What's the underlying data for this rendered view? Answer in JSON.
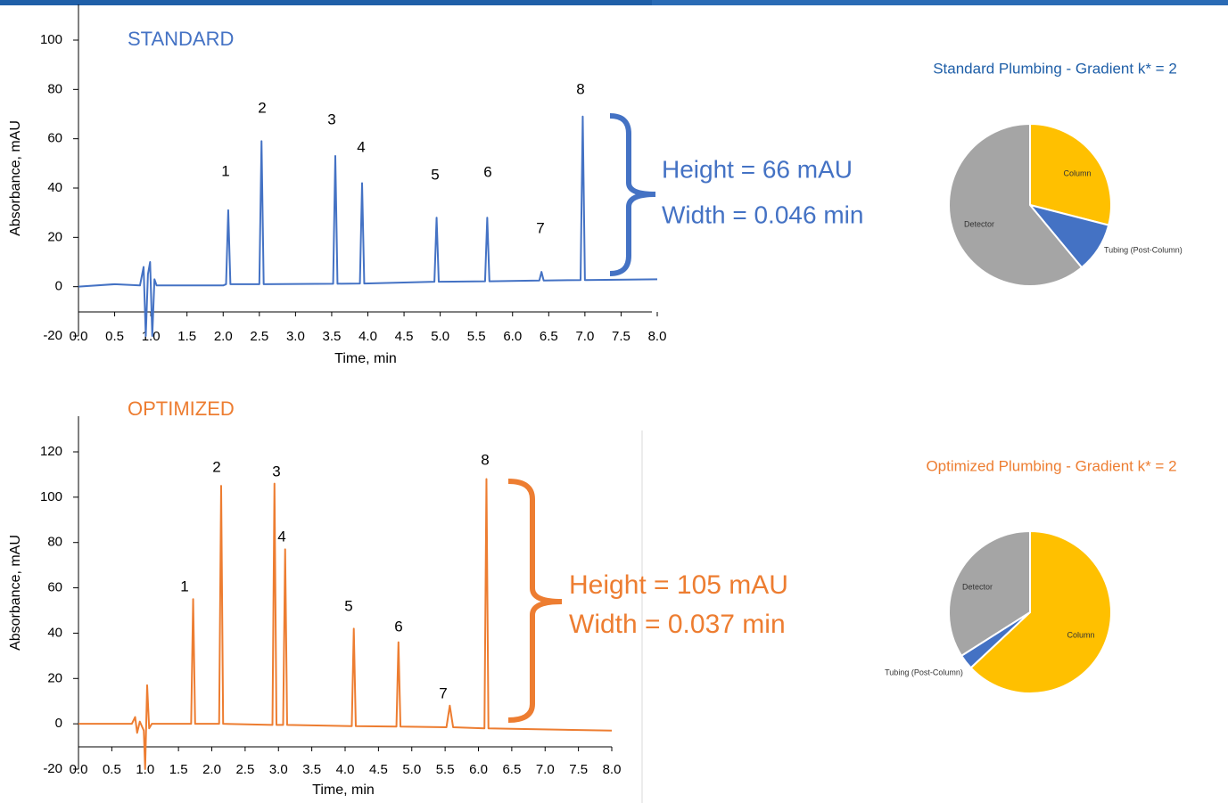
{
  "chart_data": [
    {
      "type": "line",
      "title": "STANDARD",
      "color": "#4472c4",
      "x_label": "Time, min",
      "y_label": "Absorbance, mAU",
      "x": [
        0,
        0.5,
        0.85,
        0.9,
        0.93,
        0.96,
        0.99,
        1.02,
        1.05,
        1.08,
        1.2,
        2.0,
        2.04,
        2.07,
        2.1,
        2.5,
        2.53,
        2.56,
        3.52,
        3.55,
        3.58,
        3.89,
        3.92,
        3.95,
        4.92,
        4.95,
        4.98,
        5.62,
        5.65,
        5.68,
        6.37,
        6.4,
        6.43,
        6.94,
        6.97,
        7.0,
        8.0
      ],
      "values": [
        0,
        1,
        0.5,
        8,
        -20,
        5,
        10,
        -20,
        3,
        0.5,
        0.5,
        0.5,
        1,
        31,
        1,
        1,
        59,
        1,
        1.2,
        53,
        1.2,
        1.3,
        42,
        1.3,
        2,
        28,
        2,
        2.2,
        28,
        2.2,
        2.5,
        6,
        2.5,
        2.7,
        69,
        2.7,
        3
      ],
      "xlim": [
        0,
        8
      ],
      "ylim": [
        -20,
        100
      ],
      "xticks": [
        {
          "value": 0,
          "label": "0.0"
        },
        0.5,
        {
          "value": 1,
          "label": "1.0"
        },
        1.5,
        {
          "value": 2,
          "label": "2.0"
        },
        2.5,
        {
          "value": 3,
          "label": "3.0"
        },
        3.5,
        {
          "value": 4,
          "label": "4.0"
        },
        4.5,
        {
          "value": 5,
          "label": "5.0"
        },
        5.5,
        {
          "value": 6,
          "label": "6.0"
        },
        6.5,
        {
          "value": 7,
          "label": "7.0"
        },
        7.5,
        {
          "value": 8,
          "label": "8.0"
        }
      ],
      "yticks": [
        -20,
        0,
        20,
        40,
        60,
        80,
        100
      ],
      "peak_labels": [
        "1",
        "2",
        "3",
        "4",
        "5",
        "6",
        "7",
        "8"
      ],
      "annotations": [
        "Height = 66 mAU",
        "Width = 0.046 min"
      ]
    },
    {
      "type": "line",
      "title": "OPTIMIZED",
      "color": "#ed7d31",
      "x_label": "Time, min",
      "y_label": "Absorbance, mAU",
      "x": [
        0,
        0.8,
        0.85,
        0.88,
        0.92,
        0.98,
        1.0,
        1.03,
        1.06,
        1.1,
        1.3,
        1.69,
        1.72,
        1.75,
        2.11,
        2.14,
        2.17,
        2.91,
        2.94,
        2.97,
        3.07,
        3.1,
        3.13,
        4.1,
        4.13,
        4.16,
        4.77,
        4.8,
        4.83,
        5.52,
        5.57,
        5.62,
        6.09,
        6.12,
        6.15,
        8.0
      ],
      "values": [
        0,
        0,
        3,
        -4,
        1,
        -3,
        -20,
        17,
        -2,
        0,
        0,
        0,
        55,
        0,
        0,
        105,
        0,
        -0.5,
        106,
        -0.5,
        -0.5,
        77,
        -0.5,
        -1,
        42,
        -1,
        -1.2,
        36,
        -1.2,
        -1.5,
        8,
        -1.5,
        -2,
        108,
        -2,
        -3
      ],
      "xlim": [
        0,
        8
      ],
      "ylim": [
        -20,
        120
      ],
      "xticks": [
        {
          "value": 0,
          "label": "0.0"
        },
        0.5,
        {
          "value": 1,
          "label": "1.0"
        },
        1.5,
        {
          "value": 2,
          "label": "2.0"
        },
        2.5,
        {
          "value": 3,
          "label": "3.0"
        },
        3.5,
        {
          "value": 4,
          "label": "4.0"
        },
        4.5,
        {
          "value": 5,
          "label": "5.0"
        },
        5.5,
        {
          "value": 6,
          "label": "6.0"
        },
        6.5,
        {
          "value": 7,
          "label": "7.0"
        },
        7.5,
        {
          "value": 8,
          "label": "8.0"
        }
      ],
      "yticks": [
        -20,
        0,
        20,
        40,
        60,
        80,
        100,
        120
      ],
      "peak_labels": [
        "1",
        "2",
        "3",
        "4",
        "5",
        "6",
        "7",
        "8"
      ],
      "annotations": [
        "Height = 105 mAU",
        "Width = 0.037 min"
      ]
    },
    {
      "type": "pie",
      "title": "Standard Plumbing - Gradient k* = 2",
      "title_color": "#1f5fa8",
      "categories": [
        "Column",
        "Tubing (Post-Column)",
        "Detector"
      ],
      "values": [
        29,
        10,
        61
      ],
      "colors": [
        "#ffc000",
        "#4472c4",
        "#a5a5a5"
      ]
    },
    {
      "type": "pie",
      "title": "Optimized Plumbing - Gradient k* = 2",
      "title_color": "#ed7d31",
      "categories": [
        "Column",
        "Tubing (Post-Column)",
        "Detector"
      ],
      "values": [
        63,
        3,
        34
      ],
      "colors": [
        "#ffc000",
        "#4472c4",
        "#a5a5a5"
      ]
    }
  ]
}
